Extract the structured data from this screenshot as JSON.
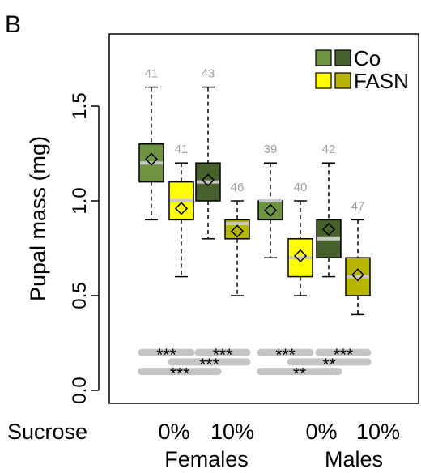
{
  "chart_data": {
    "type": "box",
    "panel_label": "B",
    "ylabel": "Pupal mass (mg)",
    "ylim": [
      -0.05,
      1.85
    ],
    "y_ticks": [
      0.0,
      0.5,
      1.0,
      1.5
    ],
    "y_tick_labels": [
      "0.0",
      "0.5",
      "1.0",
      "1.5"
    ],
    "x_row_title": "Sucrose",
    "grid": false,
    "legend": {
      "placement": "top-right",
      "entries": [
        {
          "label": "Co",
          "colors": [
            "#6e9442",
            "#46612c"
          ]
        },
        {
          "label": "FASN",
          "colors": [
            "#ffff00",
            "#b6b600"
          ]
        }
      ]
    },
    "groups": [
      {
        "label": "Females",
        "sucrose_labels": [
          "0%",
          "10%"
        ]
      },
      {
        "label": "Males",
        "sucrose_labels": [
          "0%",
          "10%"
        ]
      }
    ],
    "boxes": [
      {
        "group": "Females",
        "sucrose": "0%",
        "genotype": "Co",
        "color": "#6e9442",
        "n": "41",
        "whisker_low": 0.9,
        "q1": 1.1,
        "median": 1.2,
        "q3": 1.3,
        "whisker_high": 1.6,
        "mean": 1.22
      },
      {
        "group": "Females",
        "sucrose": "0%",
        "genotype": "FASN",
        "color": "#ffff00",
        "n": "41",
        "whisker_low": 0.6,
        "q1": 0.9,
        "median": 1.0,
        "q3": 1.1,
        "whisker_high": 1.2,
        "mean": 0.96
      },
      {
        "group": "Females",
        "sucrose": "10%",
        "genotype": "Co",
        "color": "#46612c",
        "n": "43",
        "whisker_low": 0.8,
        "q1": 1.0,
        "median": 1.1,
        "q3": 1.2,
        "whisker_high": 1.6,
        "mean": 1.11
      },
      {
        "group": "Females",
        "sucrose": "10%",
        "genotype": "FASN",
        "color": "#b6b600",
        "n": "46",
        "whisker_low": 0.5,
        "q1": 0.8,
        "median": 0.88,
        "q3": 0.9,
        "whisker_high": 1.0,
        "mean": 0.84
      },
      {
        "group": "Males",
        "sucrose": "0%",
        "genotype": "Co",
        "color": "#6e9442",
        "n": "39",
        "whisker_low": 0.7,
        "q1": 0.9,
        "median": 1.0,
        "q3": 1.0,
        "whisker_high": 1.2,
        "mean": 0.95
      },
      {
        "group": "Males",
        "sucrose": "0%",
        "genotype": "FASN",
        "color": "#ffff00",
        "n": "40",
        "whisker_low": 0.5,
        "q1": 0.6,
        "median": 0.7,
        "q3": 0.8,
        "whisker_high": 1.0,
        "mean": 0.71
      },
      {
        "group": "Males",
        "sucrose": "10%",
        "genotype": "Co",
        "color": "#46612c",
        "n": "42",
        "whisker_low": 0.6,
        "q1": 0.7,
        "median": 0.8,
        "q3": 0.9,
        "whisker_high": 1.2,
        "mean": 0.85
      },
      {
        "group": "Males",
        "sucrose": "10%",
        "genotype": "FASN",
        "color": "#b6b600",
        "n": "47",
        "whisker_low": 0.4,
        "q1": 0.5,
        "median": 0.6,
        "q3": 0.7,
        "whisker_high": 0.9,
        "mean": 0.61
      }
    ],
    "significance": [
      {
        "from_box": 0,
        "to_box": 1,
        "y": 0.2,
        "label": "***"
      },
      {
        "from_box": 2,
        "to_box": 3,
        "y": 0.2,
        "label": "***"
      },
      {
        "from_box": 1,
        "to_box": 3,
        "y": 0.15,
        "label": "***"
      },
      {
        "from_box": 0,
        "to_box": 2,
        "y": 0.1,
        "label": "***"
      },
      {
        "from_box": 4,
        "to_box": 5,
        "y": 0.2,
        "label": "***"
      },
      {
        "from_box": 6,
        "to_box": 7,
        "y": 0.2,
        "label": "***"
      },
      {
        "from_box": 5,
        "to_box": 7,
        "y": 0.15,
        "label": "**"
      },
      {
        "from_box": 4,
        "to_box": 6,
        "y": 0.1,
        "label": "**"
      }
    ]
  }
}
